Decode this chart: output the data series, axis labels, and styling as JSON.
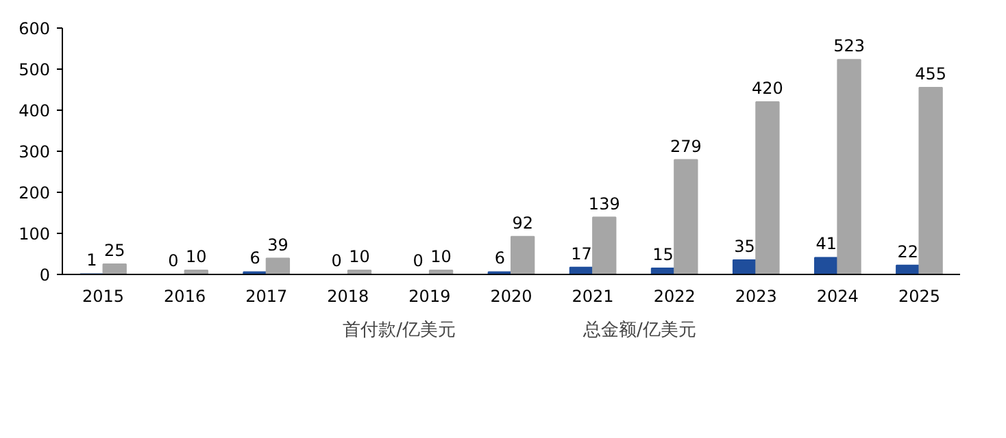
{
  "chart_data": {
    "type": "bar",
    "categories": [
      "2015",
      "2016",
      "2017",
      "2018",
      "2019",
      "2020",
      "2021",
      "2022",
      "2023",
      "2024",
      "2025"
    ],
    "series": [
      {
        "name": "首付款/亿美元",
        "color": "#1f4e9c",
        "values": [
          1,
          0,
          6,
          0,
          0,
          6,
          17,
          15,
          35,
          41,
          22
        ]
      },
      {
        "name": "总金额/亿美元",
        "color": "#a6a6a6",
        "values": [
          25,
          10,
          39,
          10,
          10,
          92,
          139,
          279,
          420,
          523,
          455
        ]
      }
    ],
    "ylim": [
      0,
      600
    ],
    "yticks": [
      0,
      100,
      200,
      300,
      400,
      500,
      600
    ],
    "data_labels": true,
    "grid": false,
    "legend": "bottom"
  }
}
